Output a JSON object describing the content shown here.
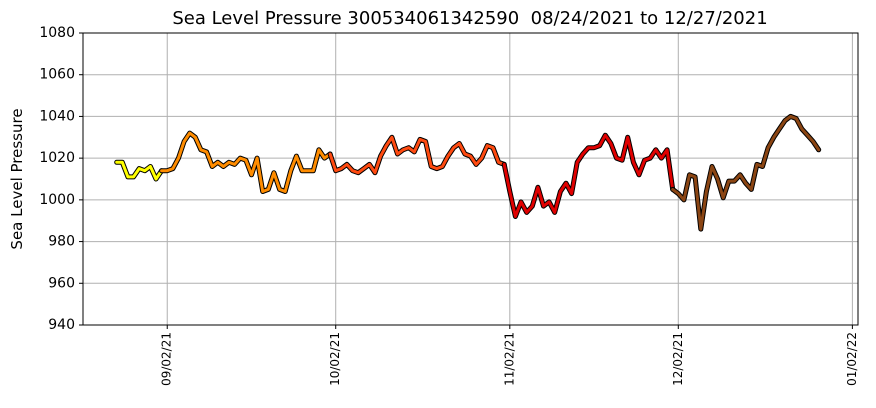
{
  "chart_data": {
    "type": "line",
    "title": "Sea Level Pressure 300534061342590  08/24/2021 to 12/27/2021",
    "y_label": "Sea Level Pressure",
    "grid": true,
    "xlim": [
      "2021-08-18",
      "2022-01-03"
    ],
    "xticks": [
      {
        "value": "2021-09-02",
        "label": "09/02/21"
      },
      {
        "value": "2021-10-02",
        "label": "10/02/21"
      },
      {
        "value": "2021-11-02",
        "label": "11/02/21"
      },
      {
        "value": "2021-12-02",
        "label": "12/02/21"
      },
      {
        "value": "2022-01-02",
        "label": "01/02/22"
      }
    ],
    "ylim": [
      940,
      1080
    ],
    "yticks": [
      940,
      960,
      980,
      1000,
      1020,
      1040,
      1060,
      1080
    ],
    "series": [
      {
        "color": "#ffff00",
        "x": [
          "2021-08-24",
          "2021-08-25",
          "2021-08-26",
          "2021-08-27",
          "2021-08-28",
          "2021-08-29",
          "2021-08-30",
          "2021-08-31",
          "2021-09-01"
        ],
        "values": [
          1018,
          1018,
          1011,
          1011,
          1015,
          1014,
          1016,
          1010,
          1014
        ]
      },
      {
        "color": "#ff8c00",
        "x": [
          "2021-09-01",
          "2021-09-02",
          "2021-09-03",
          "2021-09-04",
          "2021-09-05",
          "2021-09-06",
          "2021-09-07",
          "2021-09-08",
          "2021-09-09",
          "2021-09-10",
          "2021-09-11",
          "2021-09-12",
          "2021-09-13",
          "2021-09-14",
          "2021-09-15",
          "2021-09-16",
          "2021-09-17",
          "2021-09-18",
          "2021-09-19",
          "2021-09-20",
          "2021-09-21",
          "2021-09-22",
          "2021-09-23",
          "2021-09-24",
          "2021-09-25",
          "2021-09-26",
          "2021-09-27",
          "2021-09-28",
          "2021-09-29",
          "2021-09-30",
          "2021-10-01"
        ],
        "values": [
          1014,
          1014,
          1015,
          1020,
          1028,
          1032,
          1030,
          1024,
          1023,
          1016,
          1018,
          1016,
          1018,
          1017,
          1020,
          1019,
          1012,
          1020,
          1004,
          1005,
          1013,
          1005,
          1004,
          1014,
          1021,
          1014,
          1014,
          1014,
          1024,
          1020,
          1022
        ]
      },
      {
        "color": "#ff4a10",
        "x": [
          "2021-10-01",
          "2021-10-02",
          "2021-10-03",
          "2021-10-04",
          "2021-10-05",
          "2021-10-06",
          "2021-10-07",
          "2021-10-08",
          "2021-10-09",
          "2021-10-10",
          "2021-10-11",
          "2021-10-12",
          "2021-10-13",
          "2021-10-14",
          "2021-10-15",
          "2021-10-16",
          "2021-10-17",
          "2021-10-18",
          "2021-10-19",
          "2021-10-20",
          "2021-10-21",
          "2021-10-22",
          "2021-10-23",
          "2021-10-24",
          "2021-10-25",
          "2021-10-26",
          "2021-10-27",
          "2021-10-28",
          "2021-10-29",
          "2021-10-30",
          "2021-10-31",
          "2021-11-01"
        ],
        "values": [
          1022,
          1014,
          1015,
          1017,
          1014,
          1013,
          1015,
          1017,
          1013,
          1021,
          1026,
          1030,
          1022,
          1024,
          1025,
          1023,
          1029,
          1028,
          1016,
          1015,
          1016,
          1021,
          1025,
          1027,
          1022,
          1021,
          1017,
          1020,
          1026,
          1025,
          1018,
          1017
        ]
      },
      {
        "color": "#e00000",
        "x": [
          "2021-11-01",
          "2021-11-02",
          "2021-11-03",
          "2021-11-04",
          "2021-11-05",
          "2021-11-06",
          "2021-11-07",
          "2021-11-08",
          "2021-11-09",
          "2021-11-10",
          "2021-11-11",
          "2021-11-12",
          "2021-11-13",
          "2021-11-14",
          "2021-11-15",
          "2021-11-16",
          "2021-11-17",
          "2021-11-18",
          "2021-11-19",
          "2021-11-20",
          "2021-11-21",
          "2021-11-22",
          "2021-11-23",
          "2021-11-24",
          "2021-11-25",
          "2021-11-26",
          "2021-11-27",
          "2021-11-28",
          "2021-11-29",
          "2021-11-30",
          "2021-12-01"
        ],
        "values": [
          1017,
          1004,
          992,
          999,
          994,
          997,
          1006,
          997,
          999,
          994,
          1004,
          1008,
          1003,
          1018,
          1022,
          1025,
          1025,
          1026,
          1031,
          1027,
          1020,
          1019,
          1030,
          1018,
          1012,
          1019,
          1020,
          1024,
          1020,
          1024,
          1005
        ]
      },
      {
        "color": "#8b4513",
        "x": [
          "2021-12-01",
          "2021-12-02",
          "2021-12-03",
          "2021-12-04",
          "2021-12-05",
          "2021-12-06",
          "2021-12-07",
          "2021-12-08",
          "2021-12-09",
          "2021-12-10",
          "2021-12-11",
          "2021-12-12",
          "2021-12-13",
          "2021-12-14",
          "2021-12-15",
          "2021-12-16",
          "2021-12-17",
          "2021-12-18",
          "2021-12-19",
          "2021-12-20",
          "2021-12-21",
          "2021-12-22",
          "2021-12-23",
          "2021-12-24",
          "2021-12-25",
          "2021-12-26",
          "2021-12-27"
        ],
        "values": [
          1005,
          1003,
          1000,
          1012,
          1011,
          986,
          1004,
          1016,
          1010,
          1001,
          1009,
          1009,
          1012,
          1008,
          1005,
          1017,
          1016,
          1025,
          1030,
          1034,
          1038,
          1040,
          1039,
          1034,
          1031,
          1028,
          1024
        ]
      }
    ]
  }
}
